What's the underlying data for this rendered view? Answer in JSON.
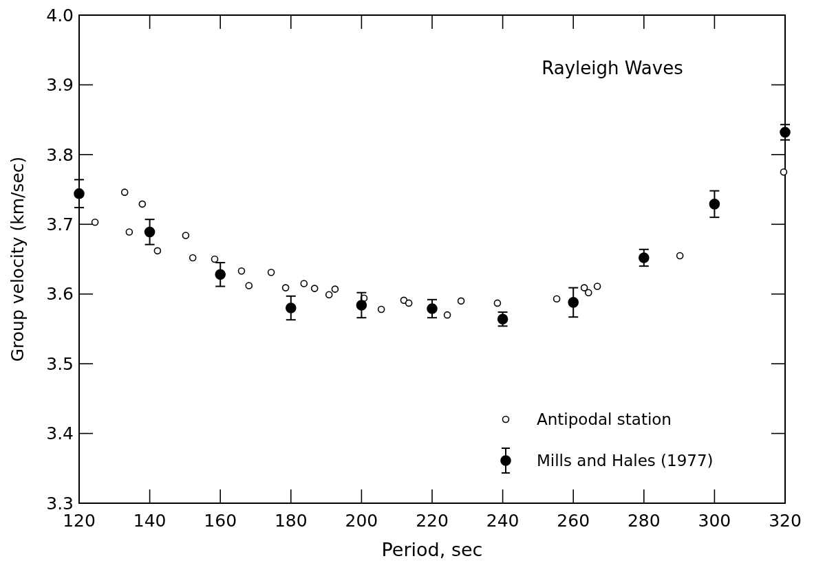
{
  "chart_data": {
    "type": "scatter",
    "title": "Rayleigh Waves",
    "xlabel": "Period, sec",
    "ylabel": "Group velocity (km/sec)",
    "xlim": [
      120,
      320
    ],
    "xticks": [
      120,
      140,
      160,
      180,
      200,
      220,
      240,
      260,
      280,
      300,
      320
    ],
    "ylim": [
      3.3,
      4.0
    ],
    "yticks": [
      3.3,
      3.4,
      3.5,
      3.6,
      3.7,
      3.8,
      3.9,
      {
        "value": 4,
        "label": "4.0"
      }
    ],
    "legend": "bottom right",
    "marker": "circle",
    "grid": false,
    "series": [
      {
        "name": "Antipodal station",
        "color": "#000000",
        "x": [
          124.5,
          132.9,
          134.2,
          137.9,
          142.2,
          150.2,
          152.2,
          158.4,
          166,
          168.1,
          174.4,
          178.5,
          183.7,
          186.7,
          190.8,
          192.5,
          200.7,
          205.6,
          212,
          213.4,
          224.3,
          228.2,
          238.5,
          255.3,
          263.1,
          264.3,
          266.8,
          290.2,
          319.6
        ],
        "values": [
          3.703,
          3.746,
          3.689,
          3.729,
          3.662,
          3.684,
          3.652,
          3.65,
          3.633,
          3.612,
          3.631,
          3.609,
          3.615,
          3.608,
          3.599,
          3.607,
          3.594,
          3.578,
          3.591,
          3.587,
          3.57,
          3.59,
          3.587,
          3.593,
          3.609,
          3.602,
          3.611,
          3.655,
          3.775
        ]
      },
      {
        "name": "Mills and Hales (1977)",
        "color": "#000000",
        "x": [
          120,
          140,
          160,
          180,
          200,
          220,
          240,
          260,
          280,
          300,
          320
        ],
        "values": [
          3.744,
          3.689,
          3.628,
          3.58,
          3.584,
          3.579,
          3.564,
          3.588,
          3.652,
          3.729,
          3.832
        ],
        "errors": [
          0.02,
          0.018,
          0.017,
          0.017,
          0.018,
          0.013,
          0.01,
          0.021,
          0.012,
          0.019,
          0.011
        ]
      }
    ]
  }
}
